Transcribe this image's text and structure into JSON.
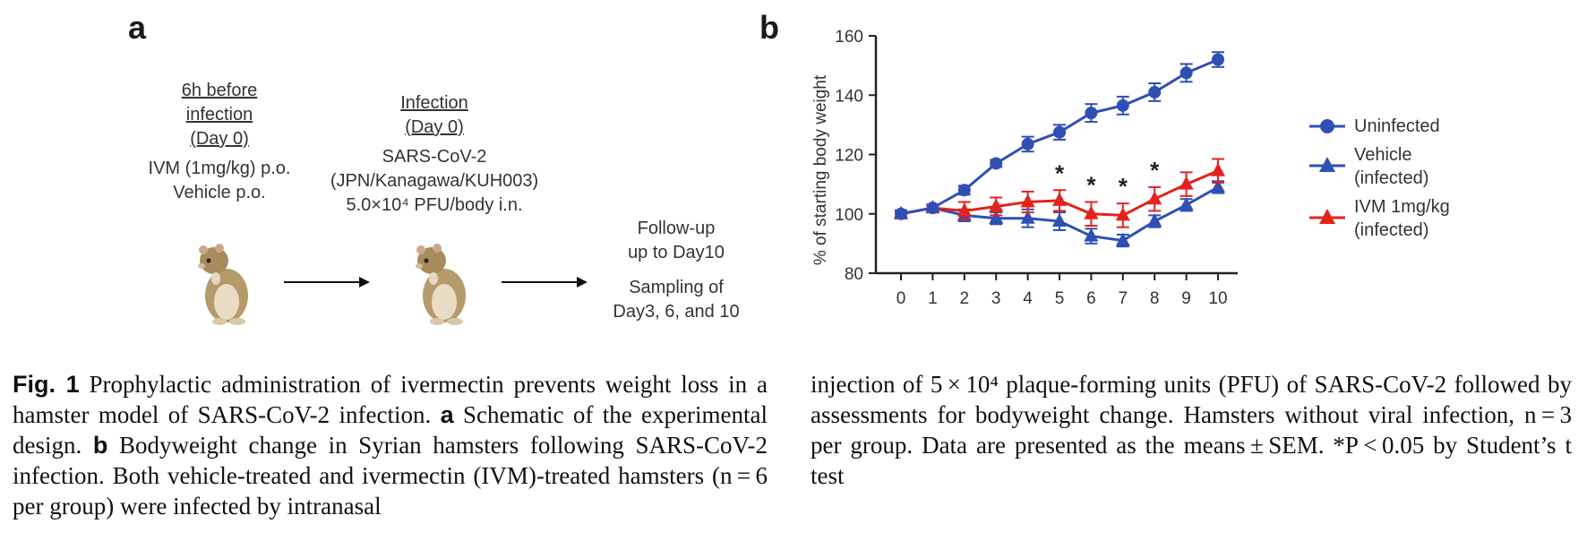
{
  "panel_a": {
    "letter": "a",
    "step1": {
      "title_l1": "6h before",
      "title_l2": "infection",
      "title_l3": "(Day 0)",
      "line1": "IVM (1mg/kg) p.o.",
      "line2": "Vehicle p.o."
    },
    "step2": {
      "title_l1": "Infection",
      "title_l2": "(Day 0)",
      "line1": "SARS-CoV-2",
      "line2": "(JPN/Kanagawa/KUH003)",
      "line3": "5.0×10⁴ PFU/body i.n."
    },
    "step3": {
      "line1": "Follow-up",
      "line2": "up to Day10",
      "line3": "Sampling of",
      "line4": "Day3, 6, and 10"
    }
  },
  "panel_b": {
    "letter": "b"
  },
  "chart_data": {
    "type": "line",
    "ylabel": "% of starting body weight",
    "xlabel": "",
    "ylim": [
      80,
      160
    ],
    "yticks": [
      80,
      100,
      120,
      140,
      160
    ],
    "x": [
      0,
      1,
      2,
      3,
      4,
      5,
      6,
      7,
      8,
      9,
      10
    ],
    "series": [
      {
        "name": "Uninfected",
        "color": "#2f4fb5",
        "marker": "circle",
        "values": [
          100,
          102,
          108,
          117,
          123.5,
          127.5,
          134,
          136.5,
          141,
          147.5,
          152
        ],
        "errors": [
          1.2,
          1.2,
          1.5,
          1.2,
          2.5,
          2.5,
          3,
          3,
          3,
          3,
          2.5
        ]
      },
      {
        "name_l1": "Vehicle",
        "name_l2": "(infected)",
        "color": "#2f4fb5",
        "marker": "triangle",
        "values": [
          100,
          102,
          99.5,
          98.5,
          98.5,
          97.5,
          92.5,
          91,
          97.5,
          103,
          109
        ],
        "errors": [
          1,
          1,
          2,
          2,
          3,
          3,
          2.5,
          2,
          2,
          2,
          2
        ]
      },
      {
        "name_l1": "IVM 1mg/kg",
        "name_l2": "(infected)",
        "color": "#e2231a",
        "marker": "triangle",
        "values": [
          100,
          102,
          101,
          102.5,
          104,
          104.5,
          100,
          99.5,
          105,
          110,
          114.5
        ],
        "errors": [
          1,
          1,
          3,
          3,
          3.5,
          3.5,
          4,
          4,
          4,
          4,
          4
        ]
      }
    ],
    "significance_marker": "*",
    "significant_x": [
      5,
      6,
      7,
      8
    ]
  },
  "caption": {
    "fig_label": "Fig. 1",
    "left": " Prophylactic administration of ivermectin prevents weight loss in a hamster model of SARS-CoV-2 infection. ",
    "a_label": "a",
    "a_text": " Schematic of the experimental design. ",
    "b_label": "b",
    "b_text": " Bodyweight change in Syrian hamsters following SARS-CoV-2 infection. Both vehicle-treated and ivermectin (IVM)-treated hamsters (n = 6 per group) were infected by intranasal",
    "right": "injection of 5 × 10⁴ plaque-forming units (PFU) of SARS-CoV-2 followed by assessments for bodyweight change. Hamsters without viral infection, n = 3 per group. Data are presented as the means ± SEM. *P < 0.05 by Student’s t test"
  }
}
